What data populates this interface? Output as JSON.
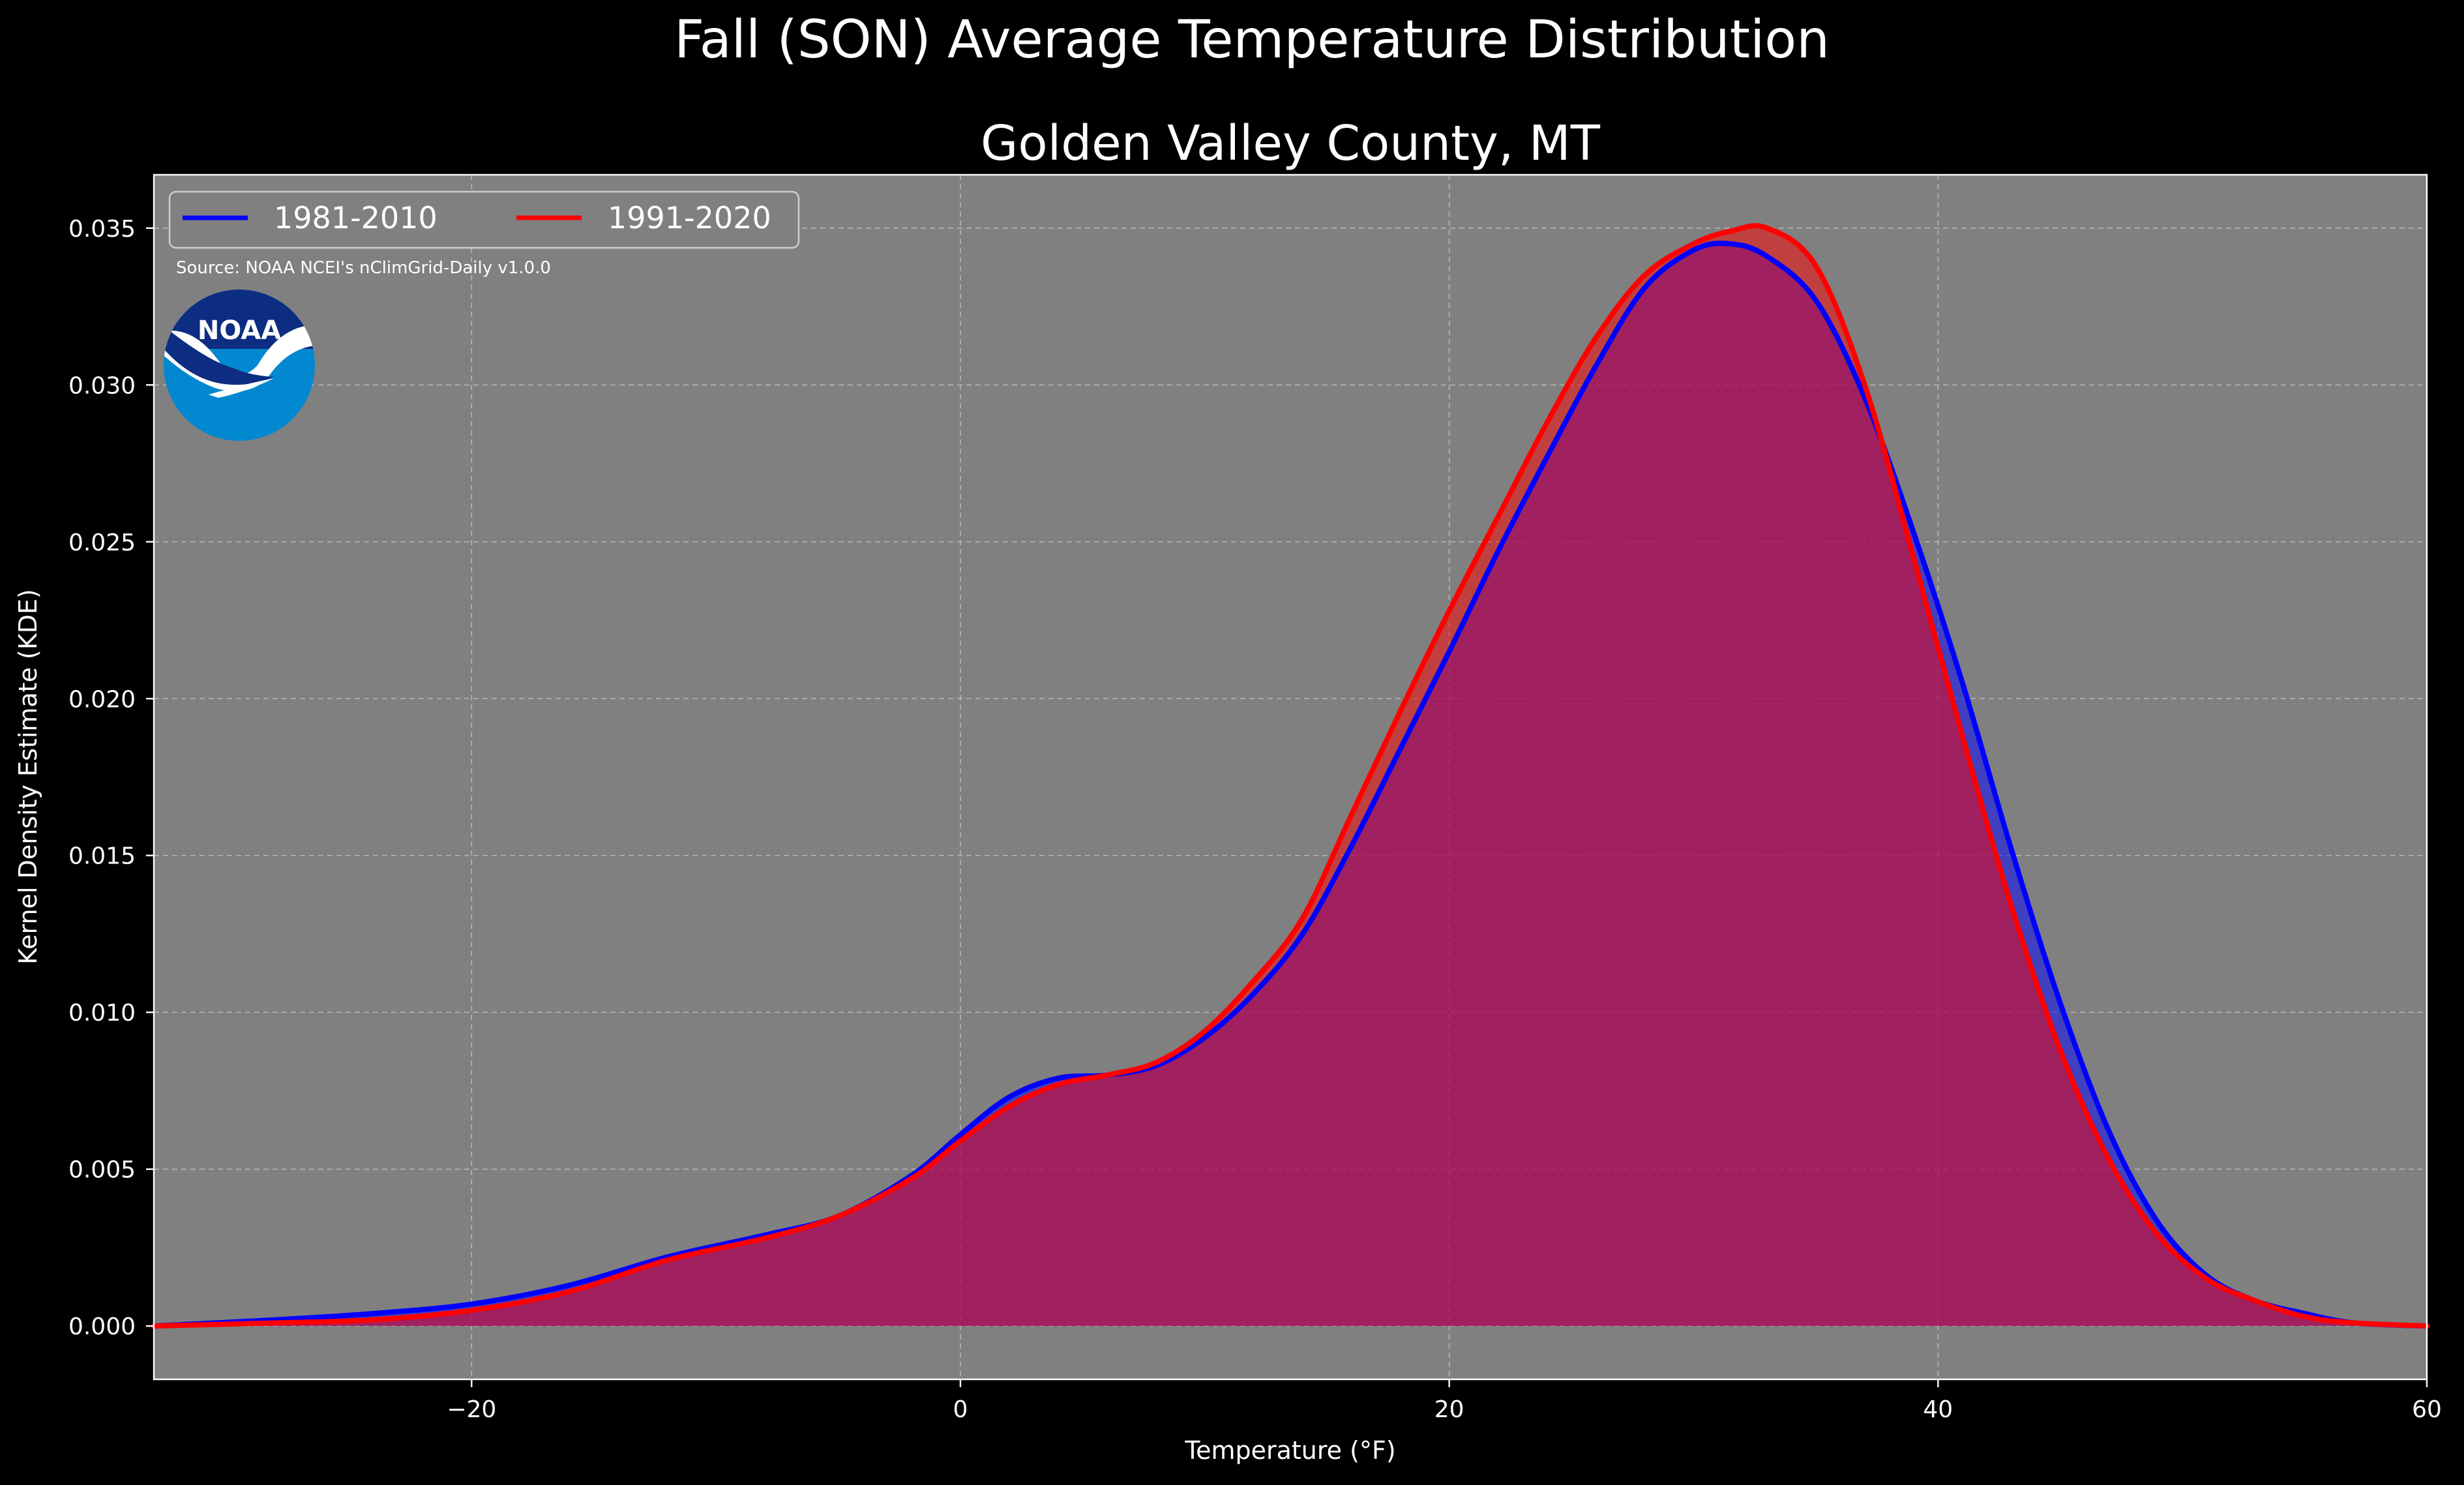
{
  "title": "Fall (SON) Average Temperature Distribution",
  "subtitle": "Golden Valley County, MT",
  "source": "Source: NOAA NCEI's nClimGrid-Daily v1.0.0",
  "logo": {
    "text": "NOAA",
    "icon": "noaa-logo-icon"
  },
  "colors": {
    "background": "#000000",
    "plot_background": "#808080",
    "series_1981_2010": "#0000ff",
    "series_1991_2020": "#ff0000",
    "fill_overlap": "#9e1f5e"
  },
  "chart_data": {
    "type": "area",
    "title": "Fall (SON) Average Temperature Distribution",
    "subtitle": "Golden Valley County, MT",
    "xlabel": "Temperature (°F)",
    "ylabel": "Kernel Density Estimate (KDE)",
    "xlim": [
      -33,
      60
    ],
    "ylim": [
      -0.0017,
      0.0367
    ],
    "x_ticks": [
      -20,
      0,
      20,
      40,
      60
    ],
    "x_tick_labels": [
      "−20",
      "0",
      "20",
      "40",
      "60"
    ],
    "y_ticks": [
      0.0,
      0.005,
      0.01,
      0.015,
      0.02,
      0.025,
      0.03,
      0.035
    ],
    "y_tick_labels": [
      "0.000",
      "0.005",
      "0.010",
      "0.015",
      "0.020",
      "0.025",
      "0.030",
      "0.035"
    ],
    "grid": true,
    "legend_position": "top-left",
    "series": [
      {
        "name": "1981-2010",
        "color": "#0000ff",
        "x": [
          -33,
          -28,
          -24,
          -20,
          -16,
          -12,
          -8,
          -5,
          -2,
          0,
          2,
          4,
          6,
          8,
          10,
          12,
          14,
          16,
          18,
          20,
          22,
          24,
          26,
          28,
          30,
          31.5,
          33,
          35,
          37,
          39,
          41,
          43,
          45,
          47,
          49,
          51,
          53,
          55,
          57,
          60
        ],
        "y": [
          0.0,
          0.0002,
          0.0004,
          0.0007,
          0.0013,
          0.0022,
          0.0029,
          0.0035,
          0.0048,
          0.0061,
          0.0073,
          0.0079,
          0.008,
          0.0083,
          0.0092,
          0.0106,
          0.0125,
          0.0153,
          0.0184,
          0.0215,
          0.0247,
          0.0277,
          0.0306,
          0.0331,
          0.0343,
          0.0345,
          0.0341,
          0.0327,
          0.0296,
          0.0253,
          0.0205,
          0.0152,
          0.0103,
          0.0062,
          0.0033,
          0.0016,
          0.0008,
          0.0004,
          0.0001,
          0.0
        ]
      },
      {
        "name": "1991-2020",
        "color": "#ff0000",
        "x": [
          -33,
          -28,
          -24,
          -20,
          -16,
          -12,
          -8,
          -5,
          -2,
          0,
          2,
          4,
          6,
          8,
          10,
          12,
          14,
          16,
          18,
          20,
          22,
          24,
          26,
          28,
          30,
          31.5,
          33,
          35,
          37,
          39,
          41,
          43,
          45,
          47,
          49,
          51,
          53,
          55,
          57,
          60
        ],
        "y": [
          0.0,
          0.0001,
          0.0002,
          0.0005,
          0.0011,
          0.0021,
          0.0028,
          0.0035,
          0.0047,
          0.0059,
          0.007,
          0.0077,
          0.008,
          0.0084,
          0.0094,
          0.011,
          0.013,
          0.0163,
          0.0196,
          0.0228,
          0.0258,
          0.0288,
          0.0315,
          0.0335,
          0.0345,
          0.0349,
          0.035,
          0.0338,
          0.03,
          0.0245,
          0.0188,
          0.0134,
          0.0088,
          0.0053,
          0.0029,
          0.0015,
          0.0008,
          0.0003,
          0.0001,
          0.0
        ]
      }
    ]
  }
}
